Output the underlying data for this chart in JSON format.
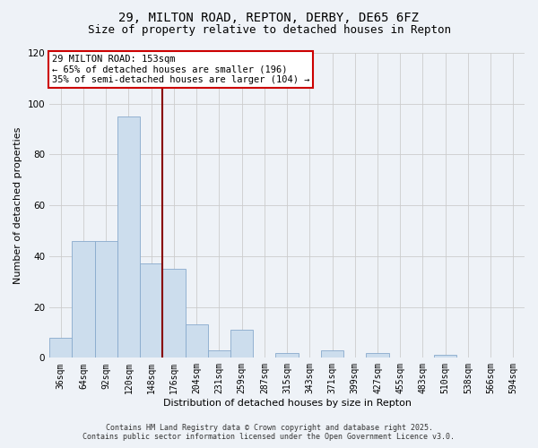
{
  "title": "29, MILTON ROAD, REPTON, DERBY, DE65 6FZ",
  "subtitle": "Size of property relative to detached houses in Repton",
  "xlabel": "Distribution of detached houses by size in Repton",
  "ylabel": "Number of detached properties",
  "categories": [
    "36sqm",
    "64sqm",
    "92sqm",
    "120sqm",
    "148sqm",
    "176sqm",
    "204sqm",
    "231sqm",
    "259sqm",
    "287sqm",
    "315sqm",
    "343sqm",
    "371sqm",
    "399sqm",
    "427sqm",
    "455sqm",
    "483sqm",
    "510sqm",
    "538sqm",
    "566sqm",
    "594sqm"
  ],
  "values": [
    8,
    46,
    46,
    95,
    37,
    35,
    13,
    3,
    11,
    0,
    2,
    0,
    3,
    0,
    2,
    0,
    0,
    1,
    0,
    0,
    0
  ],
  "bar_color": "#ccdded",
  "bar_edge_color": "#88aacc",
  "vline_x": 4.5,
  "vline_color": "#880000",
  "ylim": [
    0,
    120
  ],
  "yticks": [
    0,
    20,
    40,
    60,
    80,
    100,
    120
  ],
  "annotation_line1": "29 MILTON ROAD: 153sqm",
  "annotation_line2": "← 65% of detached houses are smaller (196)",
  "annotation_line3": "35% of semi-detached houses are larger (104) →",
  "annotation_box_color": "#ffffff",
  "annotation_border_color": "#cc0000",
  "footer_line1": "Contains HM Land Registry data © Crown copyright and database right 2025.",
  "footer_line2": "Contains public sector information licensed under the Open Government Licence v3.0.",
  "bg_color": "#eef2f7",
  "grid_color": "#cccccc",
  "title_fontsize": 10,
  "subtitle_fontsize": 9,
  "tick_fontsize": 7,
  "ylabel_fontsize": 8,
  "xlabel_fontsize": 8,
  "annotation_fontsize": 7.5,
  "footer_fontsize": 6
}
